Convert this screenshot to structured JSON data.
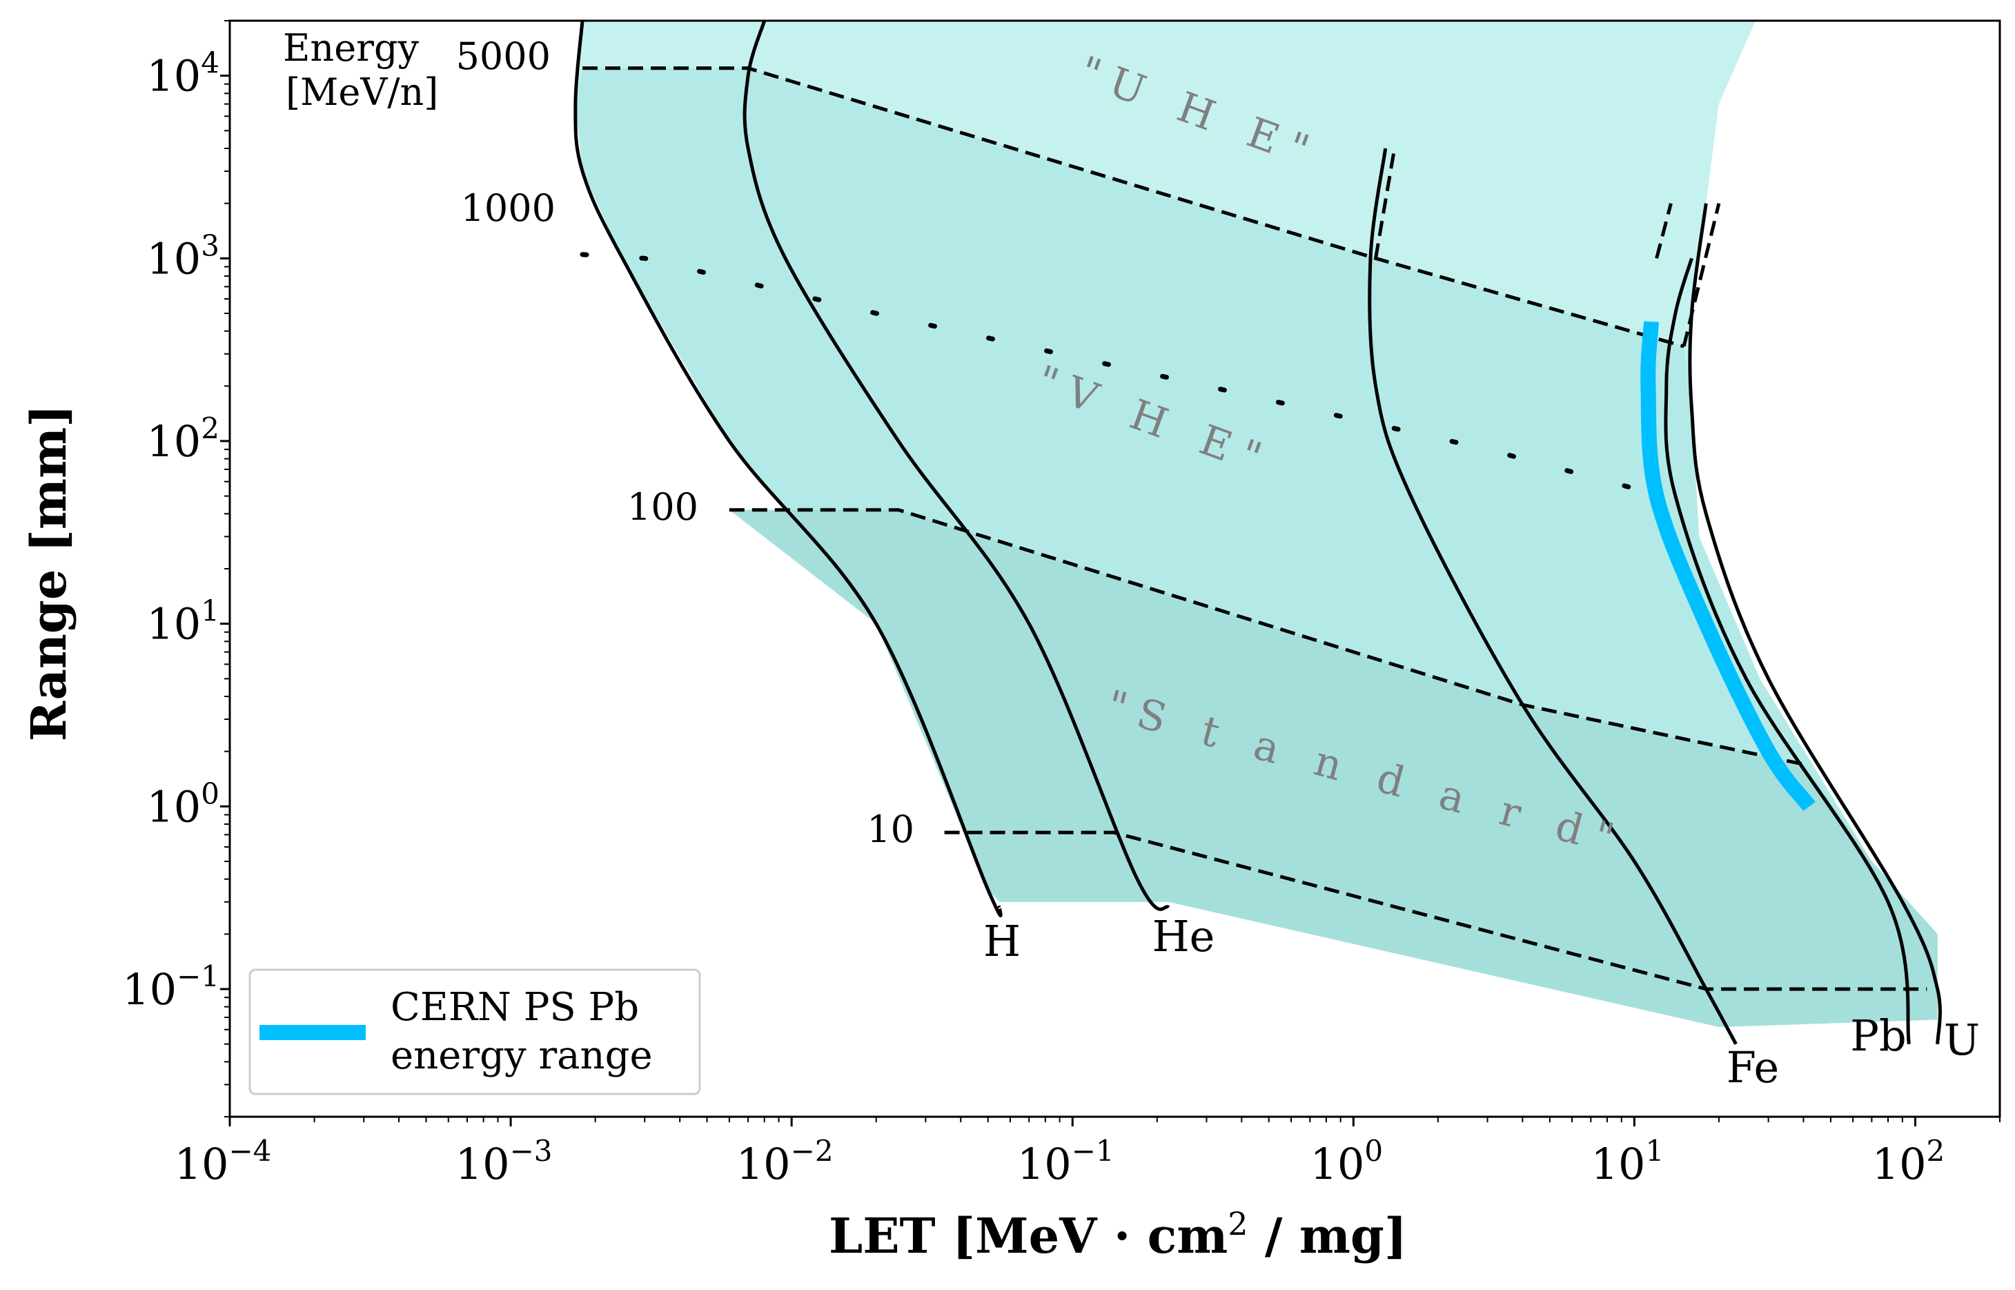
{
  "chart_data": {
    "type": "line",
    "xlabel": "LET [MeV · cm² / mg]",
    "ylabel": "Range [mm]",
    "xscale": "log",
    "yscale": "log",
    "xlim": [
      0.0001,
      200
    ],
    "ylim": [
      0.02,
      20000
    ],
    "x_tick_labels": [
      "10",
      "10",
      "10",
      "10",
      "10",
      "10",
      "10"
    ],
    "x_tick_exponents": [
      "−4",
      "−3",
      "−2",
      "−1",
      "0",
      "1",
      "2"
    ],
    "x_tick_values": [
      0.0001,
      0.001,
      0.01,
      0.1,
      1,
      10,
      100
    ],
    "y_tick_labels": [
      "10",
      "10",
      "10",
      "10",
      "10",
      "10"
    ],
    "y_tick_exponents": [
      "−1",
      "0",
      "1",
      "2",
      "3",
      "4"
    ],
    "y_tick_values": [
      0.1,
      1,
      10,
      100,
      1000,
      10000
    ],
    "energy_header": "Energy",
    "energy_unit": "[MeV/n]",
    "energy_lines": [
      {
        "label": "5000",
        "style": "dashed",
        "points": [
          [
            0.0018,
            11000
          ],
          [
            0.007,
            11000
          ],
          [
            1.2,
            1000
          ],
          [
            15,
            330
          ]
        ]
      },
      {
        "label": "1000",
        "style": "dotted",
        "points": [
          [
            0.0018,
            1050
          ],
          [
            0.003,
            1000
          ],
          [
            0.02,
            500
          ],
          [
            0.3,
            200
          ],
          [
            3,
            90
          ],
          [
            10,
            55
          ]
        ]
      },
      {
        "label": "100",
        "style": "dashed",
        "points": [
          [
            0.006,
            42
          ],
          [
            0.024,
            42
          ],
          [
            4,
            3.6
          ],
          [
            40,
            1.7
          ]
        ]
      },
      {
        "label": "10",
        "style": "dashed",
        "points": [
          [
            0.035,
            0.72
          ],
          [
            0.14,
            0.72
          ],
          [
            18,
            0.1
          ],
          [
            110,
            0.1
          ]
        ]
      }
    ],
    "particles": [
      {
        "name": "H",
        "points": [
          [
            0.0018,
            20000
          ],
          [
            0.0017,
            7000
          ],
          [
            0.0018,
            3000
          ],
          [
            0.0025,
            1000
          ],
          [
            0.006,
            100
          ],
          [
            0.02,
            10
          ],
          [
            0.05,
            0.35
          ],
          [
            0.055,
            0.28
          ]
        ]
      },
      {
        "name": "He",
        "points": [
          [
            0.008,
            20000
          ],
          [
            0.007,
            10000
          ],
          [
            0.007,
            4000
          ],
          [
            0.0095,
            1000
          ],
          [
            0.024,
            100
          ],
          [
            0.07,
            10
          ],
          [
            0.17,
            0.4
          ],
          [
            0.22,
            0.28
          ]
        ]
      },
      {
        "name": "Fe",
        "points": [
          [
            1.3,
            4000
          ],
          [
            1.15,
            1000
          ],
          [
            1.2,
            200
          ],
          [
            1.6,
            50
          ],
          [
            4,
            3.6
          ],
          [
            10,
            0.5
          ],
          [
            18,
            0.1
          ],
          [
            23,
            0.05
          ]
        ]
      },
      {
        "name": "Pb",
        "points": [
          [
            16,
            1000
          ],
          [
            14,
            500
          ],
          [
            13,
            200
          ],
          [
            14,
            50
          ],
          [
            25,
            5
          ],
          [
            80,
            0.3
          ],
          [
            95,
            0.05
          ]
        ]
      },
      {
        "name": "U",
        "points": [
          [
            18,
            2000
          ],
          [
            16,
            500
          ],
          [
            16,
            150
          ],
          [
            18,
            40
          ],
          [
            30,
            5
          ],
          [
            90,
            0.3
          ],
          [
            120,
            0.1
          ],
          [
            120,
            0.05
          ]
        ]
      }
    ],
    "regions": [
      {
        "name": "\"U H E\"",
        "shade": "#c5f2ee"
      },
      {
        "name": "\"V H E\"",
        "shade": "#b3eae7"
      },
      {
        "name": "\"S t a n d a r d\"",
        "shade": "#a5dfdc"
      }
    ],
    "series": [
      {
        "name": "CERN PS Pb\nenergy range",
        "color": "#00bfff",
        "points": [
          [
            11.5,
            450
          ],
          [
            11.2,
            200
          ],
          [
            12,
            50
          ],
          [
            18,
            10
          ],
          [
            30,
            2
          ],
          [
            42,
            1
          ]
        ]
      }
    ],
    "legend": {
      "placement": "lower-left",
      "line1": "CERN PS Pb",
      "line2": "energy range"
    }
  }
}
